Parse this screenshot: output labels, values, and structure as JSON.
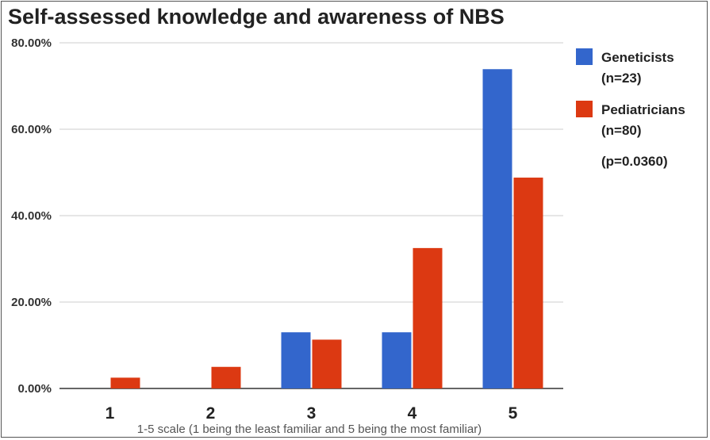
{
  "chart_data": {
    "type": "bar",
    "title": "Self-assessed knowledge and awareness of NBS",
    "xlabel": "1-5 scale (1 being the least familiar and 5 being the most familiar)",
    "ylabel": "",
    "categories": [
      "1",
      "2",
      "3",
      "4",
      "5"
    ],
    "ylim": [
      0,
      80
    ],
    "yticks": [
      0,
      20,
      40,
      60,
      80
    ],
    "ytick_labels": [
      "0.00%",
      "20.00%",
      "40.00%",
      "60.00%",
      "80.00%"
    ],
    "grid": true,
    "legend_position": "right",
    "series": [
      {
        "name": "Geneticists",
        "name_line2": "(n=23)",
        "color": "#3366cc",
        "values": [
          0,
          0,
          13.0,
          13.0,
          73.9
        ]
      },
      {
        "name": "Pediatricians",
        "name_line2": "(n=80)",
        "color": "#dc3912",
        "values": [
          2.5,
          5.0,
          11.3,
          32.5,
          48.8
        ]
      }
    ],
    "annotation": "(p=0.0360)"
  }
}
